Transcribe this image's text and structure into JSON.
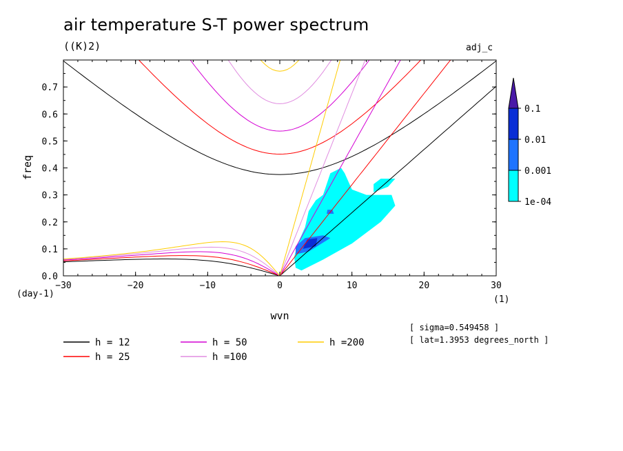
{
  "title": "air temperature S-T power spectrum",
  "units": "((K)2)",
  "variable": "adj_c",
  "notes": [
    "[ sigma=0.549458 ]",
    "[ lat=1.3953 degrees_north ]"
  ],
  "chart_data": {
    "type": "contour",
    "xlabel": "wvn",
    "ylabel": "freq",
    "x_unit": "(1)",
    "y_unit": "(day-1)",
    "xlim": [
      -30,
      30
    ],
    "ylim": [
      0,
      0.8
    ],
    "xticks": [
      -30,
      -20,
      -10,
      0,
      10,
      20,
      30
    ],
    "yticks": [
      0.0,
      0.1,
      0.2,
      0.3,
      0.4,
      0.5,
      0.6,
      0.7
    ],
    "colorbar": {
      "levels": [
        "1e-04",
        "0.001",
        "0.01",
        "0.1"
      ],
      "colors": [
        "#00ffff",
        "#1e74ff",
        "#0a2ed6",
        "#4a1aa8"
      ]
    },
    "dispersion_curves": [
      {
        "name": "h = 12",
        "h": 12,
        "color": "#000000"
      },
      {
        "name": "h = 25",
        "h": 25,
        "color": "#ff0000"
      },
      {
        "name": "h = 50",
        "h": 50,
        "color": "#d400d4"
      },
      {
        "name": "h =100",
        "h": 100,
        "color": "#e08ce0"
      },
      {
        "name": "h =200",
        "h": 200,
        "color": "#ffcc00"
      }
    ],
    "power_regions": [
      {
        "level": "1e-04",
        "x_range": [
          2,
          16
        ],
        "y_range": [
          0.02,
          0.4
        ]
      },
      {
        "level": "0.001",
        "x_range": [
          2,
          7
        ],
        "y_range": [
          0.08,
          0.15
        ]
      },
      {
        "level": "0.01",
        "x_range": [
          3,
          5
        ],
        "y_range": [
          0.1,
          0.14
        ]
      }
    ]
  }
}
